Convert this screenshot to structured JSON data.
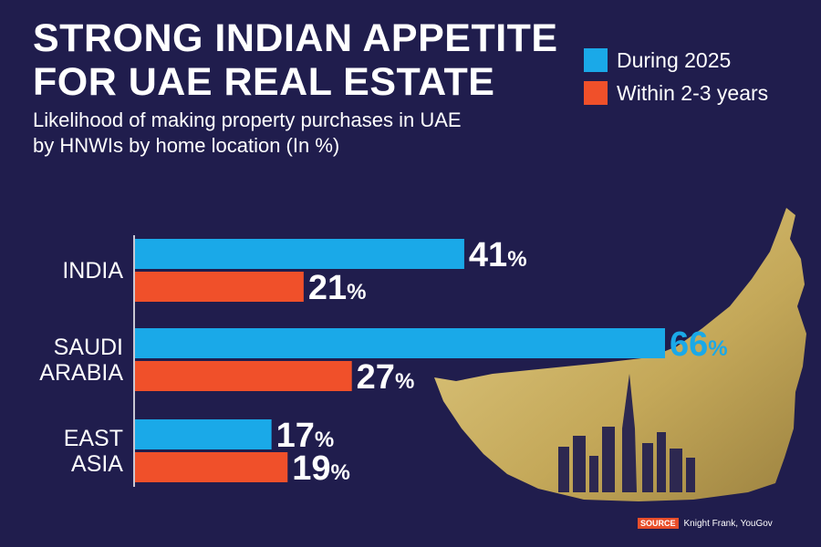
{
  "header": {
    "title": "STRONG INDIAN APPETITE FOR UAE REAL ESTATE",
    "subtitle": "Likelihood of making property purchases in UAE by HNWIs by home location (In %)"
  },
  "colors": {
    "during": "#1aa9e8",
    "within": "#f0502a",
    "background": "#201d4d",
    "map": "#c9b062"
  },
  "chart_data": {
    "type": "bar",
    "orientation": "horizontal",
    "categories": [
      [
        "INDIA"
      ],
      [
        "SAUDI",
        "ARABIA"
      ],
      [
        "EAST",
        "ASIA"
      ]
    ],
    "series": [
      {
        "name": "During 2025",
        "values": [
          41,
          66,
          17
        ],
        "labels": [
          "41",
          "66",
          "17"
        ]
      },
      {
        "name": "Within 2-3 years",
        "values": [
          21,
          27,
          19
        ],
        "labels": [
          "21",
          "27",
          "19"
        ]
      }
    ],
    "unit": "%",
    "xlim": [
      0,
      66
    ],
    "grid": false,
    "legend": "top-right"
  },
  "source": {
    "tag": "SOURCE",
    "text": "Knight Frank, YouGov"
  }
}
